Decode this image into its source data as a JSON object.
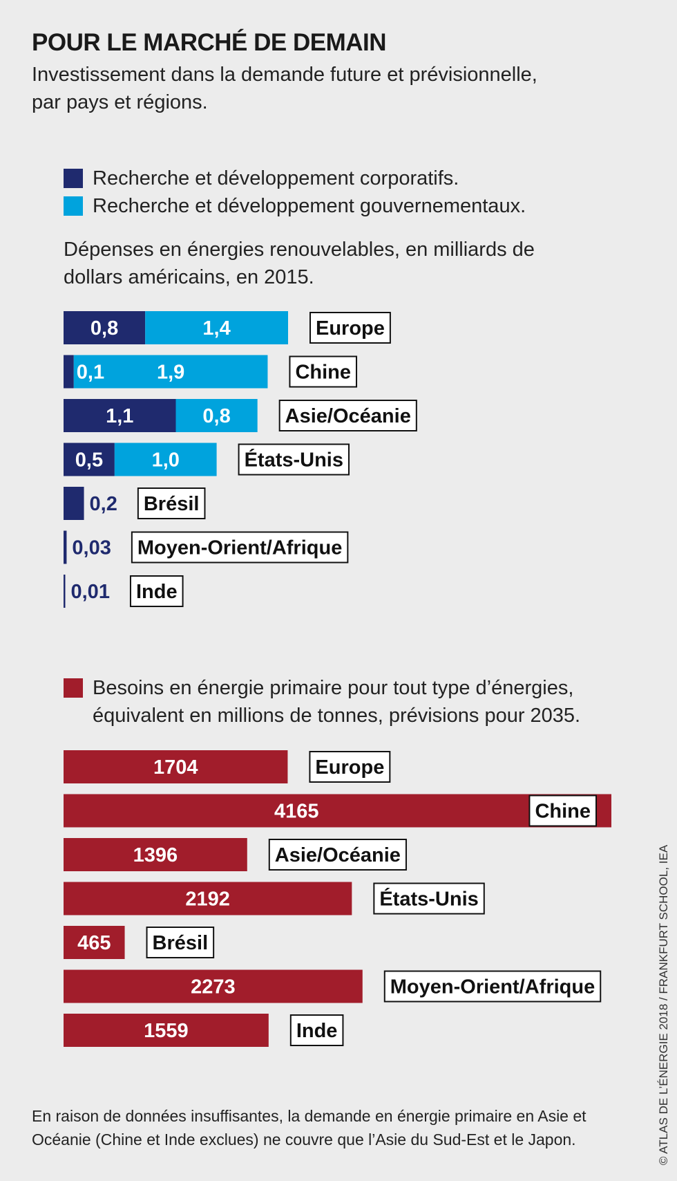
{
  "title": "POUR LE MARCHÉ DE DEMAIN",
  "subtitle": "Investissement dans la demande future et prévisionnelle, par pays et régions.",
  "colors": {
    "corporate": "#1f2a6e",
    "government": "#00a3dd",
    "energy": "#a11d2b",
    "label_border": "#111111",
    "background": "#ececec"
  },
  "legend_rd": [
    {
      "label": "Recherche et développement corporatifs.",
      "color": "#1f2a6e"
    },
    {
      "label": "Recherche et développement gouvernementaux.",
      "color": "#00a3dd"
    }
  ],
  "rd_note": "Dépenses en énergies renouvelables, en milliards de dollars américains, en 2015.",
  "legend_energy": {
    "label": "Besoins en énergie primaire pour tout type d’énergies, équivalent en millions de tonnes, prévisions pour 2035.",
    "color": "#a11d2b"
  },
  "footnote": "En raison de données insuffisantes, la demande en énergie primaire en Asie et Océanie (Chine et Inde exclues) ne couvre que l’Asie du Sud-Est et le Japon.",
  "credit": "© ATLAS DE L’ÉNERGIE 2018 / FRANKFURT SCHOOL, IEA",
  "chart_data": [
    {
      "type": "bar",
      "orientation": "horizontal",
      "stacked": true,
      "categories": [
        "Europe",
        "Chine",
        "Asie/Océanie",
        "États-Unis",
        "Brésil",
        "Moyen-Orient/Afrique",
        "Inde"
      ],
      "series": [
        {
          "name": "Recherche et développement corporatifs.",
          "values": [
            0.8,
            0.1,
            1.1,
            0.5,
            0.2,
            0.03,
            0.01
          ],
          "labels": [
            "0,8",
            "0,1",
            "1,1",
            "0,5",
            "0,2",
            "0,03",
            "0,01"
          ]
        },
        {
          "name": "Recherche et développement gouvernementaux.",
          "values": [
            1.4,
            1.9,
            0.8,
            1.0,
            0,
            0,
            0
          ],
          "labels": [
            "1,4",
            "1,9",
            "0,8",
            "1,0",
            "",
            "",
            ""
          ]
        }
      ],
      "xlim": [
        0,
        2.2
      ],
      "grid": false,
      "legend": "top"
    },
    {
      "type": "bar",
      "orientation": "horizontal",
      "categories": [
        "Europe",
        "Chine",
        "Asie/Océanie",
        "États-Unis",
        "Brésil",
        "Moyen-Orient/Afrique",
        "Inde"
      ],
      "series": [
        {
          "name": "Besoins en énergie primaire pour tout type d’énergies",
          "values": [
            1704,
            4165,
            1396,
            2192,
            465,
            2273,
            1559
          ],
          "labels": [
            "1704",
            "4165",
            "1396",
            "2192",
            "465",
            "2273",
            "1559"
          ]
        }
      ],
      "xlim": [
        0,
        4165
      ],
      "grid": false,
      "legend": "top"
    }
  ]
}
